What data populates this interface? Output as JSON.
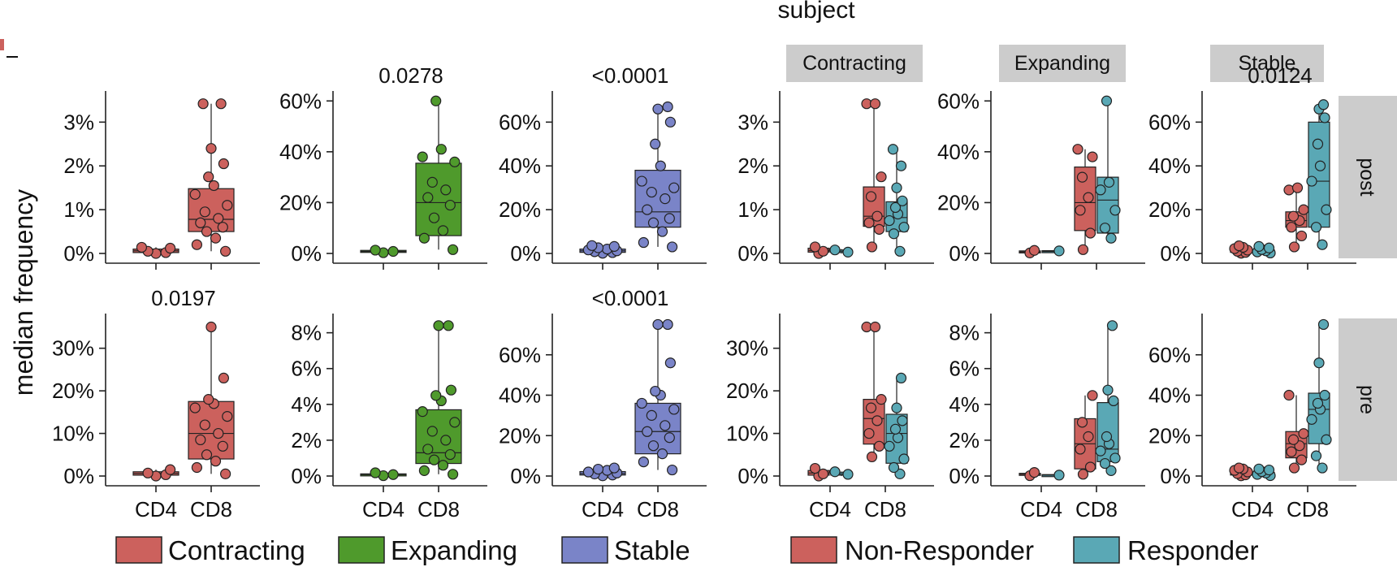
{
  "figure": {
    "subject_title": "subject",
    "ylabel": "median frequency",
    "row_strips": [
      "post",
      "pre"
    ],
    "column_strips": [
      "Contracting",
      "Expanding",
      "Stable"
    ]
  },
  "colors": {
    "Contracting": "#cc615d",
    "Expanding": "#4f9a2c",
    "Stable": "#7a84c8",
    "Non-Responder": "#cc615d",
    "Responder": "#5aa8b5",
    "strip_background": "#cccccc"
  },
  "legends": [
    {
      "items": [
        "Contracting",
        "Expanding",
        "Stable"
      ]
    },
    {
      "items": [
        "Non-Responder",
        "Responder"
      ]
    }
  ],
  "chart_data": [
    {
      "id": "p-post-contracting",
      "type": "box",
      "row": "post",
      "group_by": "subject",
      "categories": [
        "CD4",
        "CD8"
      ],
      "yticks": [
        "0%",
        "1%",
        "2%",
        "3%"
      ],
      "ylim": [
        0,
        3.6
      ],
      "pvalue": "",
      "boxes": [
        {
          "category": "CD4",
          "group": "Contracting",
          "q1": 0.02,
          "median": 0.06,
          "q3": 0.1,
          "whisker_low": 0.0,
          "whisker_high": 0.14,
          "points": [
            0.0,
            0.02,
            0.05,
            0.12,
            0.14
          ]
        },
        {
          "category": "CD8",
          "group": "Contracting",
          "q1": 0.5,
          "median": 0.78,
          "q3": 1.48,
          "whisker_low": 0.05,
          "whisker_high": 3.42,
          "points": [
            0.05,
            0.2,
            0.35,
            0.5,
            0.6,
            0.7,
            0.8,
            0.95,
            1.1,
            1.35,
            1.55,
            1.75,
            2.05,
            2.4,
            3.42,
            3.42
          ]
        }
      ]
    },
    {
      "id": "p-post-expanding",
      "type": "box",
      "row": "post",
      "group_by": "subject",
      "categories": [
        "CD4",
        "CD8"
      ],
      "yticks": [
        "0%",
        "20%",
        "40%",
        "60%"
      ],
      "ylim": [
        0,
        62
      ],
      "pvalue": "0.0278",
      "boxes": [
        {
          "category": "CD4",
          "group": "Expanding",
          "q1": 0.4,
          "median": 0.8,
          "q3": 1.2,
          "whisker_low": 0.1,
          "whisker_high": 1.5,
          "points": [
            0.3,
            0.8,
            1.3
          ]
        },
        {
          "category": "CD8",
          "group": "Expanding",
          "q1": 7,
          "median": 20,
          "q3": 35.5,
          "whisker_low": 1.5,
          "whisker_high": 60,
          "points": [
            1.5,
            6,
            9,
            14,
            19,
            22,
            25,
            28,
            36,
            38,
            41,
            60
          ]
        }
      ]
    },
    {
      "id": "p-post-stable",
      "type": "box",
      "row": "post",
      "group_by": "subject",
      "categories": [
        "CD4",
        "CD8"
      ],
      "yticks": [
        "0%",
        "20%",
        "40%",
        "60%"
      ],
      "ylim": [
        0,
        72
      ],
      "pvalue": "<0.0001",
      "boxes": [
        {
          "category": "CD4",
          "group": "Stable",
          "q1": 0.5,
          "median": 1.2,
          "q3": 2.0,
          "whisker_low": 0.1,
          "whisker_high": 3.5,
          "points": [
            0.1,
            0.4,
            0.8,
            1.2,
            1.6,
            2.0,
            2.6,
            3.2,
            3.6
          ]
        },
        {
          "category": "CD8",
          "group": "Stable",
          "q1": 12,
          "median": 19,
          "q3": 38,
          "whisker_low": 3,
          "whisker_high": 67,
          "points": [
            3,
            5,
            10,
            14,
            16,
            20,
            25,
            28,
            30,
            33,
            40,
            50,
            60,
            66,
            67
          ]
        }
      ]
    },
    {
      "id": "p-post-contracting-resp",
      "type": "box",
      "row": "post",
      "group_by": "response",
      "categories": [
        "CD4",
        "CD8"
      ],
      "yticks": [
        "0%",
        "1%",
        "2%",
        "3%"
      ],
      "ylim": [
        0,
        3.6
      ],
      "pvalue": "",
      "boxes": [
        {
          "category": "CD4",
          "group": "Non-Responder",
          "q1": 0.03,
          "median": 0.07,
          "q3": 0.12,
          "whisker_low": 0.0,
          "whisker_high": 0.15,
          "points": [
            0.0,
            0.05,
            0.15
          ]
        },
        {
          "category": "CD4",
          "group": "Responder",
          "q1": 0.02,
          "median": 0.05,
          "q3": 0.08,
          "whisker_low": 0.0,
          "whisker_high": 0.1,
          "points": [
            0.03,
            0.08
          ]
        },
        {
          "category": "CD8",
          "group": "Non-Responder",
          "q1": 0.62,
          "median": 0.85,
          "q3": 1.52,
          "whisker_low": 0.15,
          "whisker_high": 3.42,
          "points": [
            0.15,
            0.55,
            0.7,
            0.85,
            1.3,
            1.75,
            3.42,
            3.42
          ]
        },
        {
          "category": "CD8",
          "group": "Responder",
          "q1": 0.5,
          "median": 0.82,
          "q3": 1.18,
          "whisker_low": 0.05,
          "whisker_high": 2.38,
          "points": [
            0.05,
            0.45,
            0.6,
            0.75,
            0.9,
            1.05,
            1.2,
            1.5,
            2.0,
            2.38
          ]
        }
      ]
    },
    {
      "id": "p-post-expanding-resp",
      "type": "box",
      "row": "post",
      "group_by": "response",
      "categories": [
        "CD4",
        "CD8"
      ],
      "yticks": [
        "0%",
        "20%",
        "40%",
        "60%"
      ],
      "ylim": [
        0,
        62
      ],
      "pvalue": "",
      "boxes": [
        {
          "category": "CD4",
          "group": "Non-Responder",
          "q1": 0.3,
          "median": 0.6,
          "q3": 1.0,
          "whisker_low": 0.2,
          "whisker_high": 1.2,
          "points": [
            0.2,
            1.2
          ]
        },
        {
          "category": "CD4",
          "group": "Responder",
          "q1": 0.4,
          "median": 0.8,
          "q3": 1.1,
          "whisker_low": 0.4,
          "whisker_high": 1.2,
          "points": [
            1.0
          ]
        },
        {
          "category": "CD8",
          "group": "Non-Responder",
          "q1": 9,
          "median": 20,
          "q3": 34,
          "whisker_low": 1.5,
          "whisker_high": 41,
          "points": [
            1.5,
            8,
            17,
            22,
            30,
            38,
            41
          ]
        },
        {
          "category": "CD8",
          "group": "Responder",
          "q1": 8,
          "median": 21,
          "q3": 30,
          "whisker_low": 6,
          "whisker_high": 60,
          "points": [
            6,
            10,
            17,
            25,
            28,
            60
          ]
        }
      ]
    },
    {
      "id": "p-post-stable-resp",
      "type": "box",
      "row": "post",
      "group_by": "response",
      "categories": [
        "CD4",
        "CD8"
      ],
      "yticks": [
        "0%",
        "20%",
        "40%",
        "60%"
      ],
      "ylim": [
        0,
        72
      ],
      "pvalue": "0.0124",
      "boxes": [
        {
          "category": "CD4",
          "group": "Non-Responder",
          "q1": 0.5,
          "median": 1.2,
          "q3": 2.0,
          "whisker_low": 0.1,
          "whisker_high": 3.5,
          "points": [
            0.1,
            0.5,
            1.0,
            1.5,
            2.2,
            2.8,
            3.5
          ]
        },
        {
          "category": "CD4",
          "group": "Responder",
          "q1": 0.4,
          "median": 0.9,
          "q3": 1.6,
          "whisker_low": 0.1,
          "whisker_high": 3.2,
          "points": [
            0.2,
            0.7,
            1.2,
            1.8,
            2.5,
            3.2
          ]
        },
        {
          "category": "CD8",
          "group": "Non-Responder",
          "q1": 12,
          "median": 15,
          "q3": 19,
          "whisker_low": 3,
          "whisker_high": 30,
          "points": [
            3,
            8,
            12,
            15,
            17,
            20,
            29,
            30
          ]
        },
        {
          "category": "CD8",
          "group": "Responder",
          "q1": 12,
          "median": 33,
          "q3": 60,
          "whisker_low": 4,
          "whisker_high": 68,
          "points": [
            4,
            12,
            20,
            33,
            40,
            50,
            62,
            66,
            68
          ]
        }
      ]
    },
    {
      "id": "p-pre-contracting",
      "type": "box",
      "row": "pre",
      "group_by": "subject",
      "categories": [
        "CD4",
        "CD8"
      ],
      "yticks": [
        "0%",
        "10%",
        "20%",
        "30%"
      ],
      "ylim": [
        0,
        37
      ],
      "pvalue": "0.0197",
      "boxes": [
        {
          "category": "CD4",
          "group": "Contracting",
          "q1": 0.2,
          "median": 0.6,
          "q3": 1.0,
          "whisker_low": 0.0,
          "whisker_high": 1.5,
          "points": [
            0.0,
            0.3,
            0.7,
            1.5
          ]
        },
        {
          "category": "CD8",
          "group": "Contracting",
          "q1": 4,
          "median": 10,
          "q3": 17.5,
          "whisker_low": 0.5,
          "whisker_high": 35,
          "points": [
            0.5,
            2,
            3.5,
            5,
            7,
            8.5,
            10,
            12,
            14,
            16,
            17,
            18,
            23,
            35
          ]
        }
      ]
    },
    {
      "id": "p-pre-expanding",
      "type": "box",
      "row": "pre",
      "group_by": "subject",
      "categories": [
        "CD4",
        "CD8"
      ],
      "yticks": [
        "0%",
        "2%",
        "4%",
        "6%",
        "8%"
      ],
      "ylim": [
        0,
        8.8
      ],
      "pvalue": "",
      "boxes": [
        {
          "category": "CD4",
          "group": "Expanding",
          "q1": 0.03,
          "median": 0.08,
          "q3": 0.12,
          "whisker_low": 0.0,
          "whisker_high": 0.18,
          "points": [
            0.02,
            0.08,
            0.18
          ]
        },
        {
          "category": "CD8",
          "group": "Expanding",
          "q1": 0.7,
          "median": 1.3,
          "q3": 3.7,
          "whisker_low": 0.1,
          "whisker_high": 8.4,
          "points": [
            0.1,
            0.3,
            0.6,
            0.9,
            1.2,
            1.5,
            2.0,
            2.5,
            3.0,
            3.6,
            4.2,
            4.5,
            4.8,
            8.4,
            8.4
          ]
        }
      ]
    },
    {
      "id": "p-pre-stable",
      "type": "box",
      "row": "pre",
      "group_by": "subject",
      "categories": [
        "CD4",
        "CD8"
      ],
      "yticks": [
        "0%",
        "20%",
        "40%",
        "60%"
      ],
      "ylim": [
        0,
        78
      ],
      "pvalue": "<0.0001",
      "boxes": [
        {
          "category": "CD4",
          "group": "Stable",
          "q1": 0.5,
          "median": 1.2,
          "q3": 2.2,
          "whisker_low": 0.1,
          "whisker_high": 4,
          "points": [
            0.1,
            0.5,
            1.0,
            1.5,
            2.0,
            2.8,
            3.4,
            4.0
          ]
        },
        {
          "category": "CD8",
          "group": "Stable",
          "q1": 11,
          "median": 22,
          "q3": 36,
          "whisker_low": 3,
          "whisker_high": 75,
          "points": [
            3,
            7,
            11,
            15,
            19,
            22,
            25,
            30,
            33,
            36,
            40,
            42,
            56,
            75,
            75
          ]
        }
      ]
    },
    {
      "id": "p-pre-contracting-resp",
      "type": "box",
      "row": "pre",
      "group_by": "response",
      "categories": [
        "CD4",
        "CD8"
      ],
      "yticks": [
        "0%",
        "10%",
        "20%",
        "30%"
      ],
      "ylim": [
        0,
        37
      ],
      "pvalue": "",
      "boxes": [
        {
          "category": "CD4",
          "group": "Non-Responder",
          "q1": 0.2,
          "median": 0.7,
          "q3": 1.3,
          "whisker_low": 0.0,
          "whisker_high": 1.8,
          "points": [
            0.0,
            0.5,
            1.8
          ]
        },
        {
          "category": "CD4",
          "group": "Responder",
          "q1": 0.2,
          "median": 0.5,
          "q3": 0.9,
          "whisker_low": 0.0,
          "whisker_high": 1.0,
          "points": [
            0.4,
            1.0
          ]
        },
        {
          "category": "CD8",
          "group": "Non-Responder",
          "q1": 7.5,
          "median": 13.5,
          "q3": 18,
          "whisker_low": 4.5,
          "whisker_high": 35,
          "points": [
            4.5,
            7,
            10,
            13,
            16,
            18,
            35,
            35
          ]
        },
        {
          "category": "CD8",
          "group": "Responder",
          "q1": 3,
          "median": 10,
          "q3": 14.5,
          "whisker_low": 0.5,
          "whisker_high": 23,
          "points": [
            0.5,
            2,
            4,
            7,
            9,
            11,
            13,
            16,
            23
          ]
        }
      ]
    },
    {
      "id": "p-pre-expanding-resp",
      "type": "box",
      "row": "pre",
      "group_by": "response",
      "categories": [
        "CD4",
        "CD8"
      ],
      "yticks": [
        "0%",
        "2%",
        "4%",
        "6%",
        "8%"
      ],
      "ylim": [
        0,
        8.8
      ],
      "pvalue": "",
      "boxes": [
        {
          "category": "CD4",
          "group": "Non-Responder",
          "q1": 0.05,
          "median": 0.1,
          "q3": 0.15,
          "whisker_low": 0.0,
          "whisker_high": 0.2,
          "points": [
            0.02,
            0.2
          ]
        },
        {
          "category": "CD4",
          "group": "Responder",
          "q1": 0.02,
          "median": 0.05,
          "q3": 0.08,
          "whisker_low": 0.02,
          "whisker_high": 0.1,
          "points": [
            0.05
          ]
        },
        {
          "category": "CD8",
          "group": "Non-Responder",
          "q1": 0.4,
          "median": 1.8,
          "q3": 3.2,
          "whisker_low": 0.1,
          "whisker_high": 4.5,
          "points": [
            0.1,
            0.5,
            1.5,
            2.2,
            3.0,
            4.5
          ]
        },
        {
          "category": "CD8",
          "group": "Responder",
          "q1": 0.8,
          "median": 1.5,
          "q3": 4.1,
          "whisker_low": 0.3,
          "whisker_high": 8.4,
          "points": [
            0.3,
            0.7,
            1.0,
            1.4,
            1.8,
            2.2,
            4.2,
            4.8,
            8.4
          ]
        }
      ]
    },
    {
      "id": "p-pre-stable-resp",
      "type": "box",
      "row": "pre",
      "group_by": "response",
      "categories": [
        "CD4",
        "CD8"
      ],
      "yticks": [
        "0%",
        "20%",
        "40%",
        "60%"
      ],
      "ylim": [
        0,
        78
      ],
      "pvalue": "",
      "boxes": [
        {
          "category": "CD4",
          "group": "Non-Responder",
          "q1": 0.5,
          "median": 1.3,
          "q3": 2.2,
          "whisker_low": 0.1,
          "whisker_high": 4,
          "points": [
            0.1,
            0.6,
            1.2,
            2.0,
            2.8,
            3.5,
            4.0
          ]
        },
        {
          "category": "CD4",
          "group": "Responder",
          "q1": 0.4,
          "median": 1.0,
          "q3": 1.8,
          "whisker_low": 0.1,
          "whisker_high": 3.5,
          "points": [
            0.2,
            0.8,
            1.5,
            2.2,
            3.0,
            3.5
          ]
        },
        {
          "category": "CD8",
          "group": "Non-Responder",
          "q1": 9,
          "median": 16,
          "q3": 22,
          "whisker_low": 4,
          "whisker_high": 40,
          "points": [
            4,
            8,
            12,
            15,
            18,
            21,
            40
          ]
        },
        {
          "category": "CD8",
          "group": "Responder",
          "q1": 16,
          "median": 33,
          "q3": 41,
          "whisker_low": 4,
          "whisker_high": 75,
          "points": [
            4,
            10,
            18,
            28,
            33,
            36,
            40,
            56,
            75
          ]
        }
      ]
    }
  ]
}
